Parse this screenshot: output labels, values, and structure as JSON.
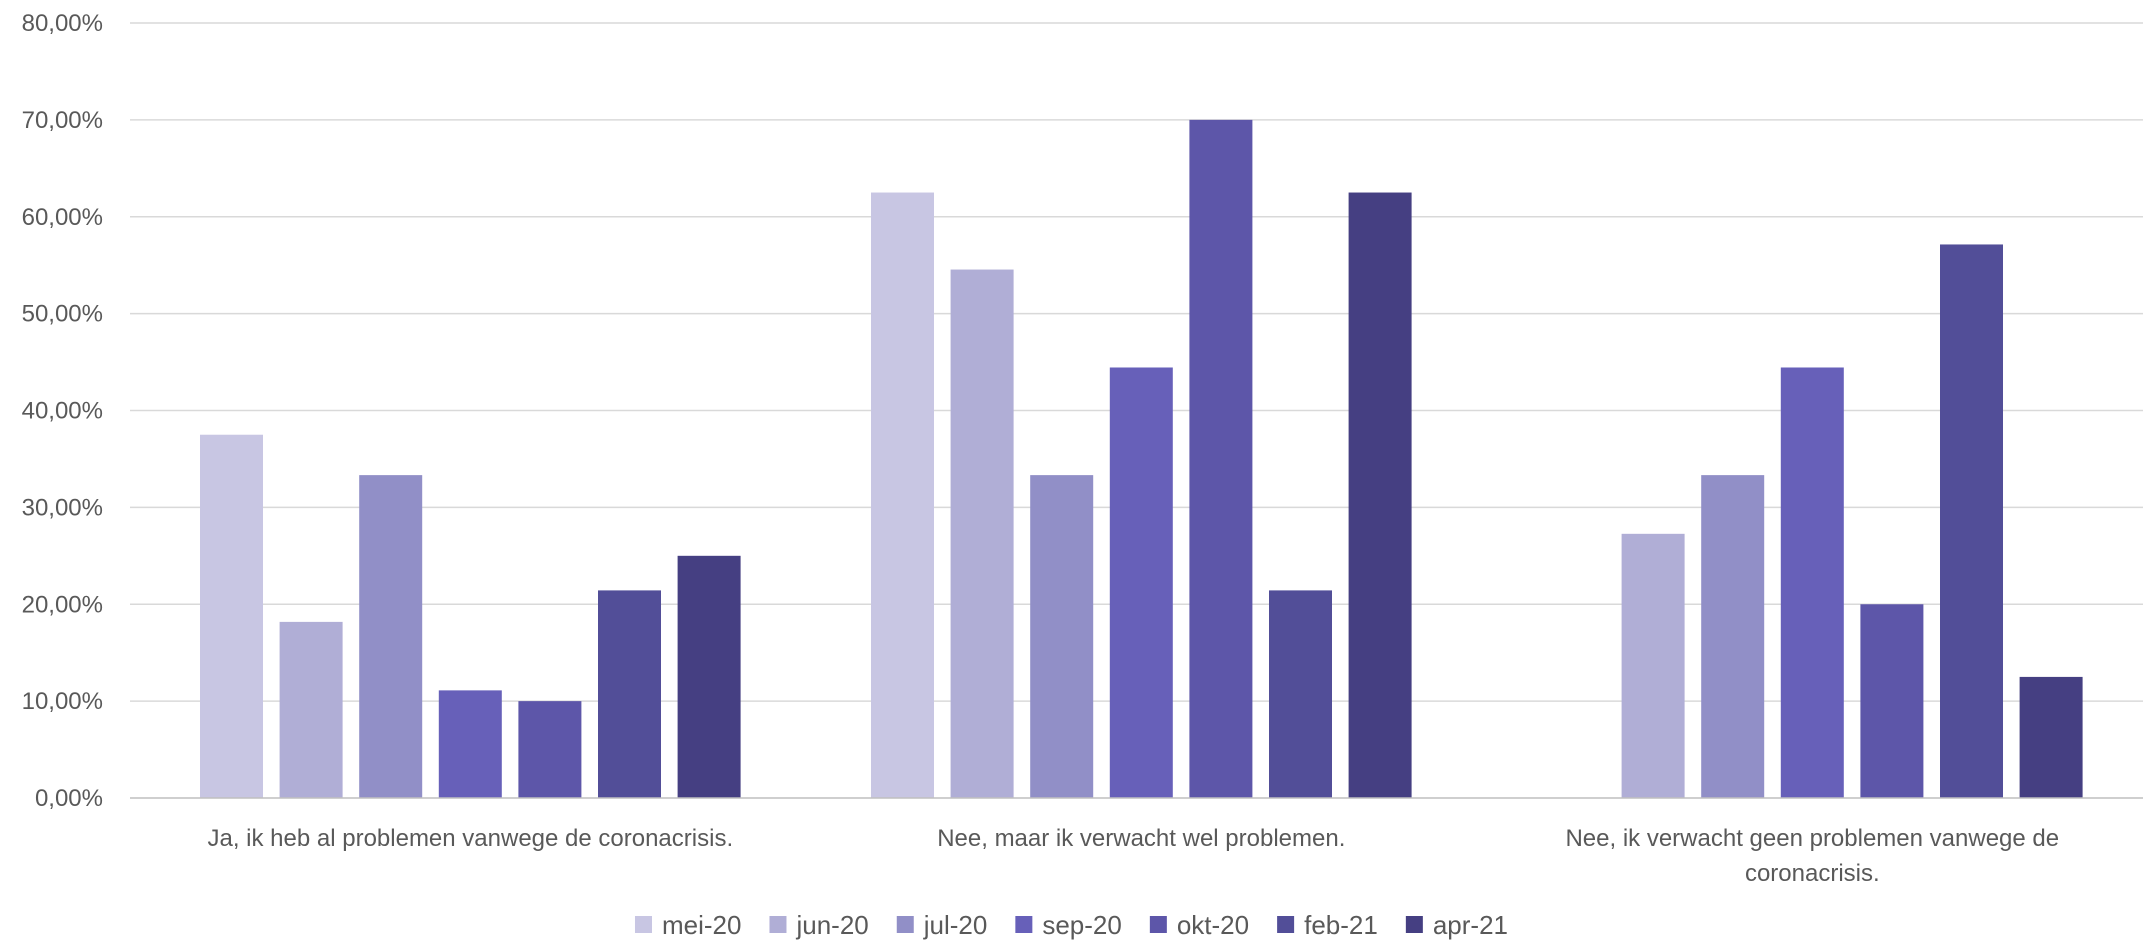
{
  "chart_data": {
    "type": "bar",
    "categories": [
      [
        "Ja, ik heb al problemen vanwege de coronacrisis."
      ],
      [
        "Nee, maar ik verwacht wel problemen."
      ],
      [
        "Nee, ik verwacht geen problemen vanwege de",
        "coronacrisis."
      ]
    ],
    "series": [
      {
        "name": "mei-20",
        "color": "#c8c6e3",
        "values": [
          37.5,
          62.5,
          0
        ]
      },
      {
        "name": "jun-20",
        "color": "#b0aed6",
        "values": [
          18.18,
          54.55,
          27.27
        ]
      },
      {
        "name": "jul-20",
        "color": "#918fc7",
        "values": [
          33.33,
          33.33,
          33.33
        ]
      },
      {
        "name": "sep-20",
        "color": "#6760b9",
        "values": [
          11.11,
          44.44,
          44.44
        ]
      },
      {
        "name": "okt-20",
        "color": "#5d56a9",
        "values": [
          10.0,
          70.0,
          20.0
        ]
      },
      {
        "name": "feb-21",
        "color": "#524e98",
        "values": [
          21.43,
          21.43,
          57.14
        ]
      },
      {
        "name": "apr-21",
        "color": "#453f82",
        "values": [
          25.0,
          62.5,
          12.5
        ]
      }
    ],
    "y_ticks": [
      "0,00%",
      "10,00%",
      "20,00%",
      "30,00%",
      "40,00%",
      "50,00%",
      "60,00%",
      "70,00%",
      "80,00%"
    ],
    "ylim": [
      0,
      80
    ],
    "grid": true,
    "legend": "bottom",
    "gridline_color": "#d9d9d9",
    "axis_color": "#bfbfbf"
  }
}
